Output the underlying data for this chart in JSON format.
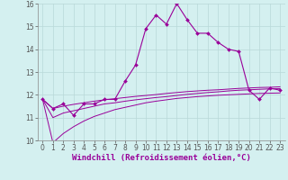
{
  "xlabel": "Windchill (Refroidissement éolien,°C)",
  "ylabel": "",
  "bg_color": "#d4f0f0",
  "grid_color": "#b8d8d8",
  "line_color": "#990099",
  "x_values": [
    0,
    1,
    2,
    3,
    4,
    5,
    6,
    7,
    8,
    9,
    10,
    11,
    12,
    13,
    14,
    15,
    16,
    17,
    18,
    19,
    20,
    21,
    22,
    23
  ],
  "line_data": [
    11.8,
    11.4,
    11.6,
    11.1,
    11.6,
    11.6,
    11.8,
    11.8,
    12.6,
    13.3,
    14.9,
    15.5,
    15.1,
    16.0,
    15.3,
    14.7,
    14.7,
    14.3,
    14.0,
    13.9,
    12.2,
    11.8,
    12.3,
    12.2
  ],
  "line_lower": [
    11.8,
    9.9,
    10.3,
    10.6,
    10.85,
    11.05,
    11.2,
    11.35,
    11.45,
    11.55,
    11.65,
    11.72,
    11.78,
    11.84,
    11.88,
    11.92,
    11.95,
    11.98,
    12.0,
    12.02,
    12.04,
    12.06,
    12.07,
    12.08
  ],
  "line_mid": [
    11.8,
    11.0,
    11.2,
    11.3,
    11.4,
    11.5,
    11.6,
    11.65,
    11.72,
    11.78,
    11.83,
    11.88,
    11.92,
    11.97,
    12.02,
    12.06,
    12.1,
    12.13,
    12.17,
    12.2,
    12.22,
    12.24,
    12.26,
    12.27
  ],
  "line_upper": [
    11.8,
    11.4,
    11.5,
    11.58,
    11.65,
    11.72,
    11.78,
    11.83,
    11.88,
    11.93,
    11.97,
    12.01,
    12.06,
    12.1,
    12.14,
    12.17,
    12.2,
    12.22,
    12.25,
    12.28,
    12.3,
    12.32,
    12.33,
    12.35
  ],
  "ylim": [
    10,
    16
  ],
  "xlim": [
    -0.5,
    23.5
  ],
  "yticks": [
    10,
    11,
    12,
    13,
    14,
    15,
    16
  ],
  "xticks": [
    0,
    1,
    2,
    3,
    4,
    5,
    6,
    7,
    8,
    9,
    10,
    11,
    12,
    13,
    14,
    15,
    16,
    17,
    18,
    19,
    20,
    21,
    22,
    23
  ],
  "tick_fontsize": 5.5,
  "xlabel_fontsize": 6.5
}
